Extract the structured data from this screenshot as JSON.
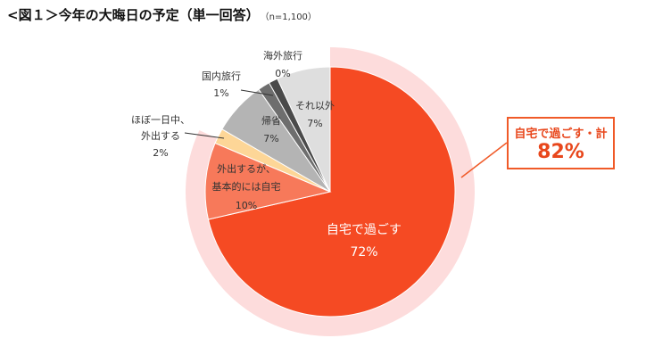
{
  "title": "<図１＞今年の大晦日の予定（単一回答）",
  "note": "（n=1,100）",
  "callout": {
    "label": "自宅で過ごす・計",
    "value": "82%"
  },
  "chart_data": {
    "type": "pie",
    "title": "<図１＞今年の大晦日の予定（単一回答）",
    "n": "n=1,100",
    "slices": [
      {
        "label": "自宅で過ごす",
        "value": 72,
        "display": "72%",
        "color": "#f54a23",
        "label_color": "#ffffff"
      },
      {
        "label": "外出するが、基本的には自宅",
        "value": 10,
        "display": "10%",
        "color": "#f7795a",
        "label_color": "#333333"
      },
      {
        "label": "ほぼ一日中、外出する",
        "value": 2,
        "display": "2%",
        "color": "#fdd697",
        "label_color": "#333333"
      },
      {
        "label": "帰省",
        "value": 7,
        "display": "7%",
        "color": "#b4b4b4",
        "label_color": "#333333"
      },
      {
        "label": "国内旅行",
        "value": 1,
        "display": "1%",
        "color": "#6e6e6e",
        "label_color": "#333333"
      },
      {
        "label": "海外旅行",
        "value": 0,
        "display": "0%",
        "color": "#4a4a4a",
        "label_color": "#333333"
      },
      {
        "label": "それ以外",
        "value": 7,
        "display": "7%",
        "color": "#dedede",
        "label_color": "#333333"
      }
    ],
    "group_total": {
      "label": "自宅で過ごす・計",
      "value": 82,
      "display": "82%",
      "color": "#fddcdc"
    }
  }
}
